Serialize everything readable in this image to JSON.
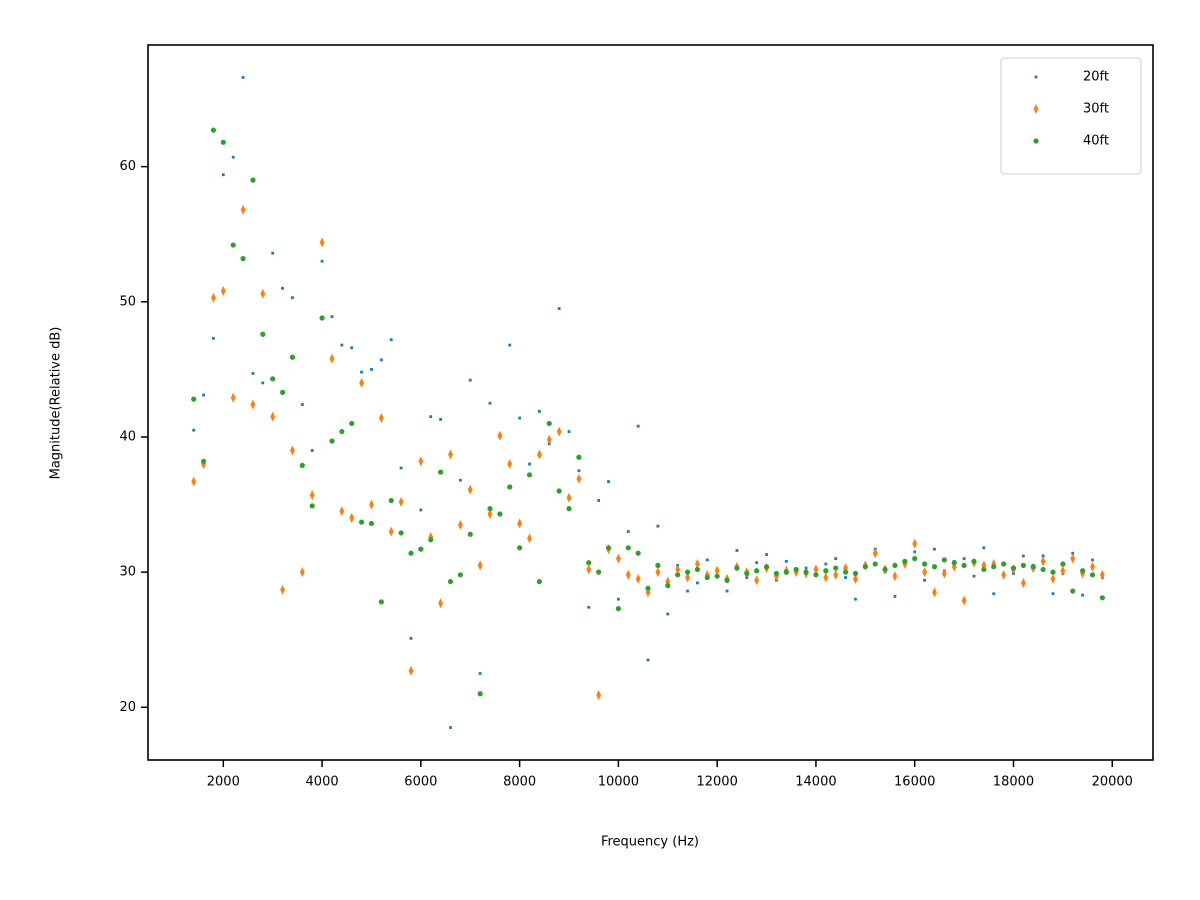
{
  "chart_data": {
    "type": "scatter",
    "xlabel": "Frequency (Hz)",
    "ylabel": "Magnitude(Relative dB)",
    "xlim": [
      475,
      20825
    ],
    "ylim": [
      16.1,
      69.0
    ],
    "xticks": [
      2000,
      4000,
      6000,
      8000,
      10000,
      12000,
      14000,
      16000,
      18000,
      20000
    ],
    "yticks": [
      20,
      30,
      40,
      50,
      60
    ],
    "legend": "upper right",
    "x": [
      1400,
      1600,
      1800,
      2000,
      2200,
      2400,
      2600,
      2800,
      3000,
      3200,
      3400,
      3600,
      3800,
      4000,
      4200,
      4400,
      4600,
      4800,
      5000,
      5200,
      5400,
      5600,
      5800,
      6000,
      6200,
      6400,
      6600,
      6800,
      7000,
      7200,
      7400,
      7600,
      7800,
      8000,
      8200,
      8400,
      8600,
      8800,
      9000,
      9200,
      9400,
      9600,
      9800,
      10000,
      10200,
      10400,
      10600,
      10800,
      11000,
      11200,
      11400,
      11600,
      11800,
      12000,
      12200,
      12400,
      12600,
      12800,
      13000,
      13200,
      13400,
      13600,
      13800,
      14000,
      14200,
      14400,
      14600,
      14800,
      15000,
      15200,
      15400,
      15600,
      15800,
      16000,
      16200,
      16400,
      16600,
      16800,
      17000,
      17200,
      17400,
      17600,
      17800,
      18000,
      18200,
      18400,
      18600,
      18800,
      19000,
      19200,
      19400,
      19600,
      19800
    ],
    "series": [
      {
        "name": "20ft",
        "color": "#1f77b4",
        "marker": "point",
        "values": [
          40.5,
          43.1,
          47.3,
          59.4,
          60.7,
          66.6,
          44.7,
          44.0,
          53.6,
          51.0,
          50.3,
          42.4,
          39.0,
          53.0,
          48.9,
          46.8,
          46.6,
          44.8,
          45.0,
          45.7,
          47.2,
          37.7,
          25.1,
          34.6,
          41.5,
          41.3,
          18.5,
          36.8,
          44.2,
          22.5,
          42.5,
          40.0,
          46.8,
          41.4,
          38.0,
          41.9,
          39.5,
          49.5,
          40.4,
          37.5,
          27.4,
          35.3,
          36.7,
          28.0,
          33.0,
          40.8,
          23.5,
          33.4,
          26.9,
          30.5,
          28.6,
          29.2,
          30.9,
          30.2,
          28.6,
          31.6,
          29.6,
          30.7,
          31.3,
          29.4,
          30.8,
          30.1,
          30.3,
          29.8,
          30.6,
          31.0,
          29.6,
          28.0,
          30.4,
          31.7,
          30.0,
          28.2,
          30.8,
          31.5,
          29.4,
          31.7,
          30.1,
          30.8,
          31.0,
          29.7,
          31.8,
          28.4,
          30.6,
          29.9,
          31.2,
          30.5,
          31.2,
          28.4,
          29.9,
          31.4,
          28.3,
          30.9,
          29.6
        ]
      },
      {
        "name": "30ft",
        "color": "#ff7f0e",
        "marker": "thin_diamond",
        "values": [
          36.7,
          38.0,
          50.3,
          50.8,
          42.9,
          56.8,
          42.4,
          50.6,
          41.5,
          28.7,
          39.0,
          30.0,
          35.7,
          54.4,
          45.8,
          34.5,
          34.0,
          44.0,
          35.0,
          41.4,
          33.0,
          35.2,
          22.7,
          38.2,
          32.6,
          27.7,
          38.7,
          33.5,
          36.1,
          30.5,
          34.3,
          40.1,
          38.0,
          33.6,
          32.5,
          38.7,
          39.8,
          40.4,
          35.5,
          36.9,
          30.2,
          20.9,
          31.7,
          31.0,
          29.8,
          29.5,
          28.5,
          30.0,
          29.3,
          30.2,
          29.6,
          30.6,
          29.8,
          30.1,
          29.5,
          30.4,
          30.0,
          29.4,
          30.3,
          29.7,
          30.1,
          30.0,
          29.9,
          30.2,
          29.6,
          29.8,
          30.3,
          29.5,
          30.5,
          31.4,
          30.2,
          29.7,
          30.6,
          32.1,
          30.0,
          28.5,
          29.9,
          30.4,
          27.9,
          30.7,
          30.5,
          30.6,
          29.8,
          30.2,
          29.2,
          30.3,
          30.8,
          29.5,
          30.1,
          31.0,
          29.9,
          30.4,
          29.8
        ]
      },
      {
        "name": "40ft",
        "color": "#2ca02c",
        "marker": "circle",
        "values": [
          42.8,
          38.2,
          62.7,
          61.8,
          54.2,
          53.2,
          59.0,
          47.6,
          44.3,
          43.3,
          45.9,
          37.9,
          34.9,
          48.8,
          39.7,
          40.4,
          41.0,
          33.7,
          33.6,
          27.8,
          35.3,
          32.9,
          31.4,
          31.7,
          32.4,
          37.4,
          29.3,
          29.8,
          32.8,
          21.0,
          34.7,
          34.3,
          36.3,
          31.8,
          37.2,
          29.3,
          41.0,
          36.0,
          34.7,
          38.5,
          30.7,
          30.0,
          31.8,
          27.3,
          31.8,
          31.4,
          28.8,
          30.5,
          29.0,
          29.8,
          30.0,
          30.2,
          29.6,
          29.7,
          29.4,
          30.3,
          29.9,
          30.1,
          30.4,
          29.9,
          30.0,
          30.2,
          30.0,
          29.8,
          30.1,
          30.3,
          30.0,
          29.9,
          30.4,
          30.6,
          30.2,
          30.5,
          30.8,
          31.0,
          30.6,
          30.4,
          30.9,
          30.7,
          30.5,
          30.8,
          30.2,
          30.4,
          30.6,
          30.3,
          30.5,
          30.4,
          30.2,
          30.0,
          30.6,
          28.6,
          30.1,
          29.8,
          28.1
        ]
      }
    ]
  }
}
